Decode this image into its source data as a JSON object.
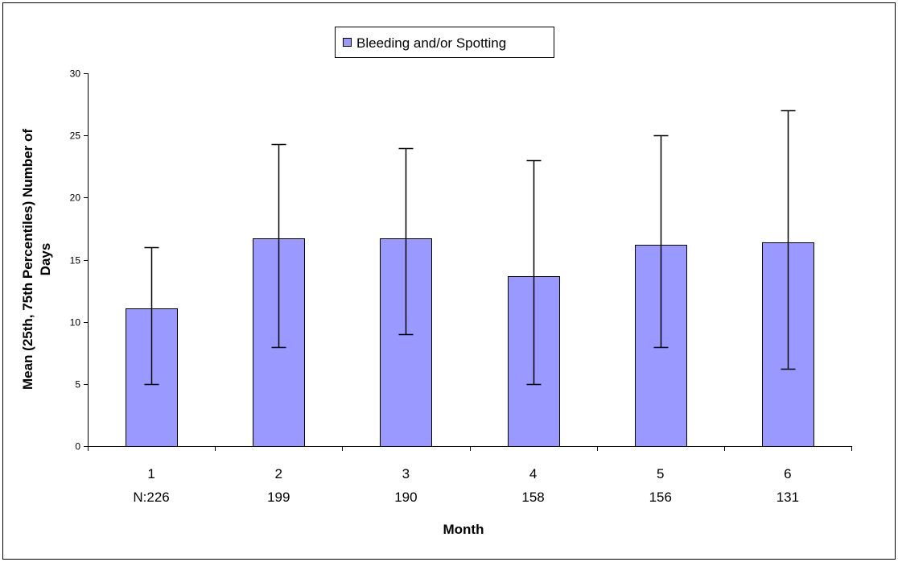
{
  "chart_data": {
    "type": "bar",
    "categories": [
      "1",
      "2",
      "3",
      "4",
      "5",
      "6"
    ],
    "n_labels": [
      "N:226",
      "199",
      "190",
      "158",
      "156",
      "131"
    ],
    "series": [
      {
        "name": "Bleeding and/or Spotting",
        "values": [
          11.1,
          16.7,
          16.7,
          13.7,
          16.2,
          16.4
        ],
        "p25": [
          5,
          8,
          9,
          5,
          8,
          6.2
        ],
        "p75": [
          16,
          24.3,
          24,
          23,
          25,
          27
        ]
      }
    ],
    "xlabel": "Month",
    "ylabel": "Mean (25th, 75th Percentiles) Number of Days",
    "ylim": [
      0,
      30
    ],
    "yticks": [
      "0",
      "5",
      "10",
      "15",
      "20",
      "25",
      "30"
    ],
    "grid": false,
    "legend_position": "top-center",
    "bar_color": "#9999ff"
  }
}
